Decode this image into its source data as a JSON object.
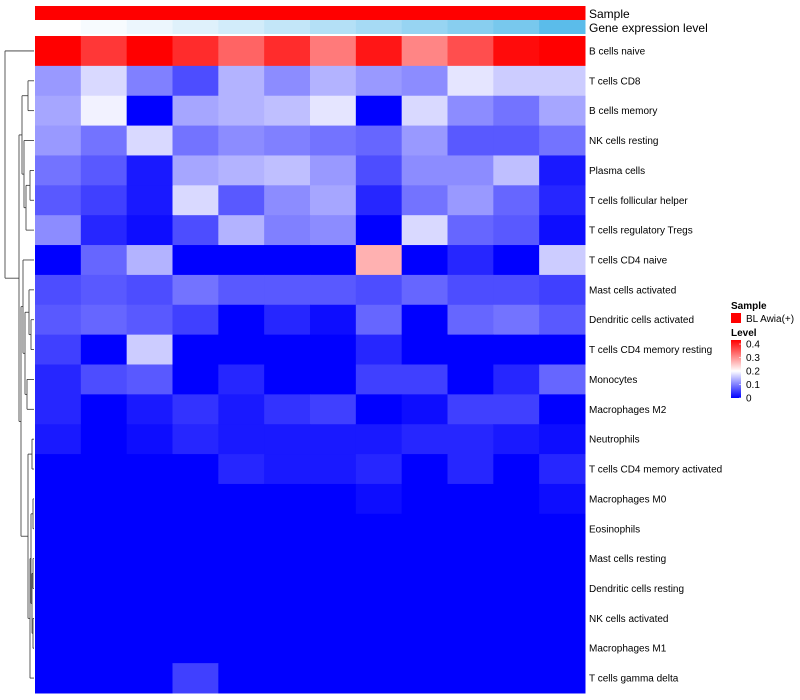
{
  "chart_data": {
    "type": "heatmap",
    "annotation_rows": [
      {
        "name": "Sample",
        "colors": [
          "#ff0000",
          "#ff0000",
          "#ff0000",
          "#ff0000",
          "#ff0000",
          "#ff0000",
          "#ff0000",
          "#ff0000",
          "#ff0000",
          "#ff0000",
          "#ff0000",
          "#ff0000"
        ]
      },
      {
        "name": "Gene expression level",
        "colors": [
          "#ffffff",
          "#f7fbfe",
          "#ecf6fd",
          "#dff1fb",
          "#d2ecfa",
          "#c3e6f8",
          "#b4e0f6",
          "#a6daf4",
          "#97d4f2",
          "#88ceef",
          "#78c8ed",
          "#5bbcea"
        ]
      }
    ],
    "rows": [
      "B cells naive",
      "T cells CD8",
      "B cells memory",
      "NK cells resting",
      "Plasma cells",
      "T cells follicular helper",
      "T cells regulatory  Tregs",
      "T cells CD4 naive",
      "Mast cells activated",
      "Dendritic cells activated",
      "T cells CD4 memory resting",
      "Monocytes",
      "Macrophages M2",
      "Neutrophils",
      "T cells CD4 memory activated",
      "Macrophages M0",
      "Eosinophils",
      "Mast cells resting",
      "Dendritic cells resting",
      "NK cells activated",
      "Macrophages M1",
      "T cells gamma delta"
    ],
    "n_columns": 12,
    "values": [
      [
        0.43,
        0.38,
        0.43,
        0.39,
        0.34,
        0.39,
        0.32,
        0.41,
        0.31,
        0.36,
        0.42,
        0.43
      ],
      [
        0.12,
        0.17,
        0.1,
        0.06,
        0.14,
        0.11,
        0.14,
        0.12,
        0.11,
        0.18,
        0.16,
        0.16
      ],
      [
        0.13,
        0.19,
        0.0,
        0.13,
        0.14,
        0.15,
        0.18,
        0.0,
        0.17,
        0.11,
        0.09,
        0.13
      ],
      [
        0.12,
        0.09,
        0.17,
        0.09,
        0.11,
        0.1,
        0.09,
        0.08,
        0.12,
        0.07,
        0.07,
        0.09
      ],
      [
        0.09,
        0.07,
        0.02,
        0.13,
        0.14,
        0.15,
        0.12,
        0.06,
        0.11,
        0.11,
        0.15,
        0.02
      ],
      [
        0.07,
        0.05,
        0.02,
        0.17,
        0.07,
        0.11,
        0.13,
        0.03,
        0.09,
        0.12,
        0.08,
        0.03
      ],
      [
        0.11,
        0.03,
        0.01,
        0.06,
        0.14,
        0.1,
        0.11,
        0.0,
        0.17,
        0.08,
        0.07,
        0.01
      ],
      [
        0.0,
        0.08,
        0.14,
        0.0,
        0.0,
        0.0,
        0.0,
        0.27,
        0.0,
        0.03,
        0.0,
        0.16
      ],
      [
        0.06,
        0.07,
        0.06,
        0.09,
        0.07,
        0.07,
        0.07,
        0.06,
        0.08,
        0.06,
        0.06,
        0.05
      ],
      [
        0.07,
        0.08,
        0.07,
        0.05,
        0.0,
        0.03,
        0.01,
        0.08,
        0.0,
        0.08,
        0.09,
        0.07
      ],
      [
        0.05,
        0.0,
        0.16,
        0.0,
        0.0,
        0.0,
        0.0,
        0.03,
        0.0,
        0.0,
        0.0,
        0.0
      ],
      [
        0.03,
        0.06,
        0.07,
        0.0,
        0.03,
        0.0,
        0.0,
        0.05,
        0.05,
        0.0,
        0.03,
        0.08
      ],
      [
        0.03,
        0.0,
        0.02,
        0.04,
        0.02,
        0.04,
        0.05,
        0.0,
        0.01,
        0.05,
        0.05,
        0.0
      ],
      [
        0.02,
        0.0,
        0.01,
        0.03,
        0.02,
        0.02,
        0.02,
        0.02,
        0.03,
        0.03,
        0.02,
        0.01
      ],
      [
        0.0,
        0.0,
        0.0,
        0.0,
        0.03,
        0.02,
        0.02,
        0.03,
        0.0,
        0.03,
        0.0,
        0.03
      ],
      [
        0.0,
        0.0,
        0.0,
        0.0,
        0.0,
        0.0,
        0.0,
        0.01,
        0.0,
        0.0,
        0.0,
        0.01
      ],
      [
        0.0,
        0.0,
        0.0,
        0.0,
        0.0,
        0.0,
        0.0,
        0.0,
        0.0,
        0.0,
        0.0,
        0.0
      ],
      [
        0.0,
        0.0,
        0.0,
        0.0,
        0.0,
        0.0,
        0.0,
        0.0,
        0.0,
        0.0,
        0.0,
        0.0
      ],
      [
        0.0,
        0.0,
        0.0,
        0.0,
        0.0,
        0.0,
        0.0,
        0.0,
        0.0,
        0.0,
        0.0,
        0.0
      ],
      [
        0.0,
        0.0,
        0.0,
        0.0,
        0.0,
        0.0,
        0.0,
        0.0,
        0.0,
        0.0,
        0.0,
        0.0
      ],
      [
        0.0,
        0.0,
        0.0,
        0.0,
        0.0,
        0.0,
        0.0,
        0.0,
        0.0,
        0.0,
        0.0,
        0.0
      ],
      [
        0.0,
        0.0,
        0.0,
        0.05,
        0.0,
        0.0,
        0.0,
        0.0,
        0.0,
        0.0,
        0.0,
        0.0
      ]
    ],
    "color_scale": {
      "min": 0,
      "max": 0.43,
      "stops": [
        {
          "value": 0,
          "color": "#0000ff"
        },
        {
          "value": 0.2,
          "color": "#ffffff"
        },
        {
          "value": 0.43,
          "color": "#ff0000"
        }
      ]
    },
    "legend": {
      "sample_title": "Sample",
      "sample_entry": "BL Awia(+)",
      "sample_color": "#ff0000",
      "level_title": "Level",
      "level_ticks": [
        0.4,
        0.3,
        0.2,
        0.1,
        0
      ]
    },
    "row_dendrogram": true
  }
}
